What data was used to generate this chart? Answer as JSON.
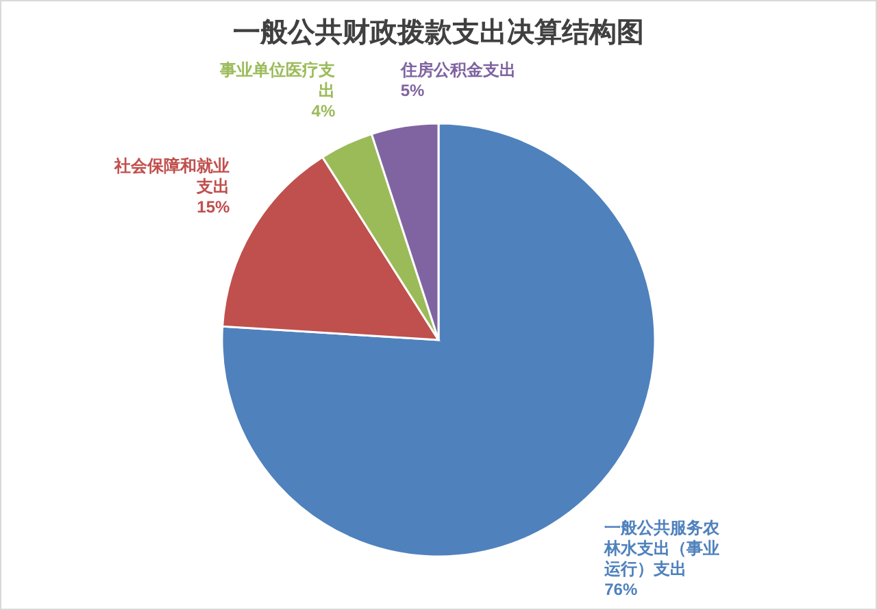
{
  "chart_data": {
    "type": "pie",
    "title": "一般公共财政拨款支出决算结构图",
    "categories": [
      "一般公共服务农林水支出（事业运行）支出",
      "社会保障和就业支出",
      "事业单位医疗支出",
      "住房公积金支出"
    ],
    "values": [
      76,
      15,
      4,
      5
    ],
    "colors": [
      "#4f81bd",
      "#c0504d",
      "#9bbb59",
      "#8064a2"
    ],
    "value_labels": [
      "76%",
      "15%",
      "4%",
      "5%"
    ]
  }
}
